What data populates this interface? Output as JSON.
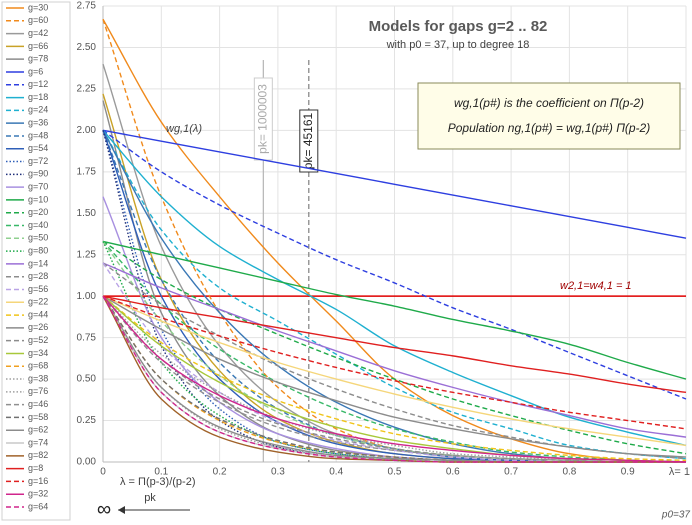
{
  "chart_data": {
    "type": "line",
    "title": "Models for gaps g=2 .. 82",
    "subtitle": "with p0 = 37,  up to degree 18",
    "box_lines": [
      "wg,1(p#) is the coefficient on Π(p-2)",
      "Population ng,1(p#) = wg,1(p#) Π(p-2)"
    ],
    "curve_label": "wg,1(λ)",
    "lambda_label": "λ = Π(p-3)/(p-2)",
    "x_end_sub": "p0=37",
    "infinity_label": "∞",
    "pk_label": "pk",
    "reference_line": {
      "value": 1,
      "label": "w2,1=w4,1 = 1",
      "color": "#e00000"
    },
    "vertical_markers": [
      {
        "value": 0.275,
        "label": "pk= 1000003",
        "color": "#b5b5b5",
        "style": "solid"
      },
      {
        "value": 0.353,
        "label": "pk= 45161",
        "color": "#808080",
        "style": "dashed"
      }
    ],
    "x": [
      0,
      0.1,
      0.2,
      0.3,
      0.4,
      0.5,
      0.6,
      0.7,
      0.8,
      0.9,
      1
    ],
    "xlim": [
      0,
      1
    ],
    "xticks": [
      {
        "value": 0,
        "label": "0"
      },
      0.1,
      0.2,
      0.3,
      0.4,
      0.5,
      0.6,
      0.7,
      0.8,
      0.9,
      {
        "value": 1,
        "label": "λ= 1"
      }
    ],
    "ylim": [
      0,
      2.75
    ],
    "yticks": [
      {
        "value": 0,
        "label": "0.00"
      },
      {
        "value": 0.25,
        "label": "0.25"
      },
      {
        "value": 0.5,
        "label": "0.50"
      },
      {
        "value": 0.75,
        "label": "0.75"
      },
      {
        "value": 1,
        "label": "1.00"
      },
      {
        "value": 1.25,
        "label": "1.25"
      },
      {
        "value": 1.5,
        "label": "1.50"
      },
      {
        "value": 1.75,
        "label": "1.75"
      },
      {
        "value": 2,
        "label": "2.00"
      },
      {
        "value": 2.25,
        "label": "2.25"
      },
      {
        "value": 2.5,
        "label": "2.50"
      },
      {
        "value": 2.75,
        "label": "2.75"
      }
    ],
    "grid": true,
    "legend": "left",
    "series": [
      {
        "name": "g=30",
        "color": "#f08a1c",
        "style": "solid",
        "values": [
          2.67,
          2.05,
          1.6,
          1.2,
          0.85,
          0.5,
          0.28,
          0.14,
          0.05,
          0.01,
          0
        ]
      },
      {
        "name": "g=60",
        "color": "#f08a1c",
        "style": "dashed",
        "values": [
          2.67,
          1.6,
          0.9,
          0.45,
          0.2,
          0.08,
          0.03,
          0.01,
          0,
          0,
          0
        ]
      },
      {
        "name": "g=42",
        "color": "#9a9a9a",
        "style": "solid",
        "values": [
          2.4,
          1.3,
          0.7,
          0.36,
          0.17,
          0.08,
          0.03,
          0.01,
          0,
          0,
          0
        ]
      },
      {
        "name": "g=66",
        "color": "#c9a227",
        "style": "solid",
        "values": [
          2.22,
          1.1,
          0.55,
          0.26,
          0.12,
          0.05,
          0.02,
          0.01,
          0,
          0,
          0
        ]
      },
      {
        "name": "g=78",
        "color": "#8c8c8c",
        "style": "solid",
        "values": [
          2.18,
          0.9,
          0.4,
          0.17,
          0.07,
          0.03,
          0.01,
          0,
          0,
          0,
          0
        ]
      },
      {
        "name": "g=6",
        "color": "#2e3fe0",
        "style": "solid",
        "values": [
          2,
          1.935,
          1.87,
          1.805,
          1.74,
          1.675,
          1.61,
          1.545,
          1.48,
          1.415,
          1.35
        ]
      },
      {
        "name": "g=12",
        "color": "#2e3fe0",
        "style": "dashed",
        "values": [
          2,
          1.75,
          1.55,
          1.38,
          1.22,
          1.08,
          0.93,
          0.8,
          0.66,
          0.52,
          0.38
        ]
      },
      {
        "name": "g=18",
        "color": "#1fb0d0",
        "style": "solid",
        "values": [
          2,
          1.6,
          1.3,
          1.1,
          0.92,
          0.7,
          0.54,
          0.4,
          0.27,
          0.18,
          0.1
        ]
      },
      {
        "name": "g=24",
        "color": "#1fb0d0",
        "style": "dashed",
        "values": [
          2,
          1.4,
          1.05,
          0.85,
          0.65,
          0.45,
          0.3,
          0.2,
          0.1,
          0.05,
          0.02
        ]
      },
      {
        "name": "g=36",
        "color": "#3a78b5",
        "style": "solid",
        "values": [
          2,
          1.35,
          0.9,
          0.58,
          0.36,
          0.21,
          0.11,
          0.05,
          0.02,
          0.01,
          0
        ]
      },
      {
        "name": "g=48",
        "color": "#3a78b5",
        "style": "dashed",
        "values": [
          2,
          1.1,
          0.6,
          0.32,
          0.16,
          0.08,
          0.03,
          0.01,
          0,
          0,
          0
        ]
      },
      {
        "name": "g=54",
        "color": "#2f5fb8",
        "style": "solid",
        "values": [
          2,
          1.0,
          0.5,
          0.24,
          0.11,
          0.05,
          0.02,
          0.01,
          0,
          0,
          0
        ]
      },
      {
        "name": "g=72",
        "color": "#2f5fb8",
        "style": "dotted",
        "values": [
          2,
          0.8,
          0.32,
          0.12,
          0.05,
          0.02,
          0.01,
          0,
          0,
          0,
          0
        ]
      },
      {
        "name": "g=90",
        "color": "#1f2f7a",
        "style": "dotted",
        "values": [
          2,
          0.7,
          0.25,
          0.09,
          0.03,
          0.01,
          0,
          0,
          0,
          0,
          0
        ]
      },
      {
        "name": "g=70",
        "color": "#a890e0",
        "style": "solid",
        "values": [
          1.6,
          0.75,
          0.36,
          0.17,
          0.08,
          0.03,
          0.01,
          0,
          0,
          0,
          0
        ]
      },
      {
        "name": "g=10",
        "color": "#1faa4a",
        "style": "solid",
        "values": [
          1.33,
          1.25,
          1.17,
          1.09,
          1.01,
          0.94,
          0.86,
          0.79,
          0.71,
          0.6,
          0.5
        ]
      },
      {
        "name": "g=20",
        "color": "#1faa4a",
        "style": "dashed",
        "values": [
          1.33,
          1.1,
          0.92,
          0.77,
          0.63,
          0.5,
          0.38,
          0.28,
          0.19,
          0.11,
          0.05
        ]
      },
      {
        "name": "g=40",
        "color": "#38b868",
        "style": "dashed",
        "values": [
          1.33,
          0.95,
          0.68,
          0.48,
          0.32,
          0.2,
          0.12,
          0.06,
          0.03,
          0.01,
          0
        ]
      },
      {
        "name": "g=50",
        "color": "#8fd08f",
        "style": "dashed",
        "values": [
          1.33,
          0.85,
          0.52,
          0.3,
          0.16,
          0.08,
          0.04,
          0.02,
          0.01,
          0,
          0
        ]
      },
      {
        "name": "g=80",
        "color": "#1faa4a",
        "style": "dotted",
        "values": [
          1.33,
          0.6,
          0.28,
          0.12,
          0.05,
          0.02,
          0.01,
          0,
          0,
          0,
          0
        ]
      },
      {
        "name": "g=14",
        "color": "#9b6fd6",
        "style": "solid",
        "values": [
          1.2,
          1.05,
          0.92,
          0.79,
          0.67,
          0.55,
          0.45,
          0.36,
          0.28,
          0.2,
          0.15
        ]
      },
      {
        "name": "g=28",
        "color": "#8c8c8c",
        "style": "dashed",
        "values": [
          1.2,
          0.95,
          0.76,
          0.58,
          0.44,
          0.32,
          0.22,
          0.15,
          0.09,
          0.05,
          0.02
        ]
      },
      {
        "name": "g=56",
        "color": "#b9a3e6",
        "style": "dashed",
        "values": [
          1.2,
          0.7,
          0.42,
          0.24,
          0.13,
          0.07,
          0.03,
          0.01,
          0,
          0,
          0
        ]
      },
      {
        "name": "g=22",
        "color": "#f5d67a",
        "style": "solid",
        "values": [
          1,
          0.85,
          0.72,
          0.6,
          0.5,
          0.41,
          0.33,
          0.26,
          0.2,
          0.15,
          0.1
        ]
      },
      {
        "name": "g=44",
        "color": "#f0c419",
        "style": "dashed",
        "values": [
          1,
          0.72,
          0.52,
          0.37,
          0.26,
          0.17,
          0.11,
          0.07,
          0.04,
          0.02,
          0.01
        ]
      },
      {
        "name": "g=26",
        "color": "#8c8c8c",
        "style": "solid",
        "values": [
          1,
          0.8,
          0.62,
          0.48,
          0.37,
          0.27,
          0.2,
          0.14,
          0.09,
          0.05,
          0.03
        ]
      },
      {
        "name": "g=52",
        "color": "#8c8c8c",
        "style": "dashed",
        "values": [
          1,
          0.62,
          0.38,
          0.23,
          0.14,
          0.08,
          0.04,
          0.02,
          0.01,
          0,
          0
        ]
      },
      {
        "name": "g=34",
        "color": "#a8c83a",
        "style": "solid",
        "values": [
          1,
          0.7,
          0.48,
          0.32,
          0.21,
          0.13,
          0.08,
          0.04,
          0.02,
          0.01,
          0
        ]
      },
      {
        "name": "g=68",
        "color": "#f0a020",
        "style": "dashed",
        "values": [
          1,
          0.5,
          0.25,
          0.12,
          0.06,
          0.03,
          0.01,
          0,
          0,
          0,
          0
        ]
      },
      {
        "name": "g=38",
        "color": "#a0a0a0",
        "style": "dotted",
        "values": [
          1,
          0.65,
          0.42,
          0.26,
          0.16,
          0.1,
          0.05,
          0.03,
          0.01,
          0,
          0
        ]
      },
      {
        "name": "g=76",
        "color": "#a0a0a0",
        "style": "dotted",
        "values": [
          1,
          0.45,
          0.2,
          0.09,
          0.04,
          0.02,
          0.01,
          0,
          0,
          0,
          0
        ]
      },
      {
        "name": "g=46",
        "color": "#909090",
        "style": "dashed",
        "values": [
          1,
          0.6,
          0.36,
          0.21,
          0.12,
          0.07,
          0.04,
          0.02,
          0.01,
          0,
          0
        ]
      },
      {
        "name": "g=58",
        "color": "#707070",
        "style": "dashed",
        "values": [
          1,
          0.5,
          0.26,
          0.13,
          0.06,
          0.03,
          0.01,
          0,
          0,
          0,
          0
        ]
      },
      {
        "name": "g=62",
        "color": "#8c8c8c",
        "style": "solid",
        "values": [
          1,
          0.45,
          0.21,
          0.1,
          0.04,
          0.02,
          0.01,
          0,
          0,
          0,
          0
        ]
      },
      {
        "name": "g=74",
        "color": "#c8c8c8",
        "style": "solid",
        "values": [
          1,
          0.42,
          0.18,
          0.08,
          0.03,
          0.01,
          0,
          0,
          0,
          0,
          0
        ]
      },
      {
        "name": "g=82",
        "color": "#a0622a",
        "style": "solid",
        "values": [
          1,
          0.38,
          0.15,
          0.06,
          0.02,
          0.01,
          0,
          0,
          0,
          0,
          0
        ]
      },
      {
        "name": "g=8",
        "color": "#e02020",
        "style": "solid",
        "values": [
          1,
          0.93,
          0.87,
          0.81,
          0.75,
          0.69,
          0.64,
          0.58,
          0.53,
          0.47,
          0.42
        ]
      },
      {
        "name": "g=16",
        "color": "#e02020",
        "style": "dashed",
        "values": [
          1,
          0.87,
          0.76,
          0.66,
          0.57,
          0.49,
          0.42,
          0.36,
          0.3,
          0.25,
          0.2
        ]
      },
      {
        "name": "g=32",
        "color": "#d0258c",
        "style": "solid",
        "values": [
          1,
          0.62,
          0.4,
          0.26,
          0.17,
          0.11,
          0.07,
          0.04,
          0.02,
          0.01,
          0
        ]
      },
      {
        "name": "g=64",
        "color": "#d0258c",
        "style": "dashed",
        "values": [
          1,
          0.42,
          0.18,
          0.08,
          0.03,
          0.01,
          0,
          0,
          0,
          0,
          0
        ]
      }
    ]
  }
}
